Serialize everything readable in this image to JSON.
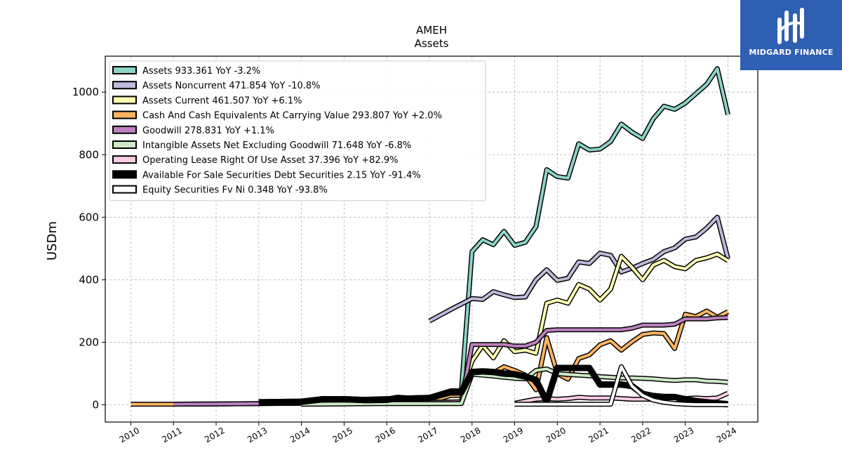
{
  "brand": {
    "name": "MIDGARD FINANCE",
    "color": "#2f5fb3"
  },
  "chart_data": {
    "type": "line",
    "title": "AMEH",
    "subtitle": "Assets",
    "ylabel": "USDm",
    "xlabel": "",
    "ylim": [
      -55,
      1115
    ],
    "xlim": [
      2009.4,
      2024.7
    ],
    "yticks": [
      0,
      200,
      400,
      600,
      800,
      1000
    ],
    "xticks": [
      "2010",
      "2011",
      "2012",
      "2013",
      "2014",
      "2015",
      "2016",
      "2017",
      "2018",
      "2019",
      "2020",
      "2021",
      "2022",
      "2023",
      "2024"
    ],
    "grid": true,
    "legend_position": "top-left",
    "series": [
      {
        "name": "Assets",
        "legend": "Assets  933.361 YoY -3.2%",
        "color": "#8dd3c7",
        "points": [
          [
            2013.0,
            8
          ],
          [
            2014.0,
            10
          ],
          [
            2014.5,
            14
          ],
          [
            2015.0,
            16
          ],
          [
            2015.5,
            18
          ],
          [
            2016.0,
            20
          ],
          [
            2016.5,
            22
          ],
          [
            2017.0,
            24
          ],
          [
            2017.5,
            45
          ],
          [
            2017.75,
            45
          ],
          [
            2018.0,
            490
          ],
          [
            2018.25,
            528
          ],
          [
            2018.5,
            512
          ],
          [
            2018.75,
            555
          ],
          [
            2019.0,
            510
          ],
          [
            2019.25,
            520
          ],
          [
            2019.5,
            570
          ],
          [
            2019.75,
            752
          ],
          [
            2020.0,
            730
          ],
          [
            2020.25,
            725
          ],
          [
            2020.5,
            835
          ],
          [
            2020.75,
            815
          ],
          [
            2021.0,
            818
          ],
          [
            2021.25,
            842
          ],
          [
            2021.5,
            898
          ],
          [
            2021.75,
            872
          ],
          [
            2022.0,
            852
          ],
          [
            2022.25,
            915
          ],
          [
            2022.5,
            955
          ],
          [
            2022.75,
            945
          ],
          [
            2023.0,
            965
          ],
          [
            2023.25,
            995
          ],
          [
            2023.5,
            1025
          ],
          [
            2023.75,
            1075
          ],
          [
            2024.0,
            928
          ]
        ]
      },
      {
        "name": "Assets Noncurrent",
        "legend": "Assets Noncurrent  471.854 YoY -10.8%",
        "color": "#bebada",
        "points": [
          [
            2017.0,
            268
          ],
          [
            2017.5,
            305
          ],
          [
            2018.0,
            340
          ],
          [
            2018.25,
            337
          ],
          [
            2018.5,
            362
          ],
          [
            2018.75,
            352
          ],
          [
            2019.0,
            343
          ],
          [
            2019.25,
            345
          ],
          [
            2019.5,
            400
          ],
          [
            2019.75,
            432
          ],
          [
            2020.0,
            398
          ],
          [
            2020.25,
            405
          ],
          [
            2020.5,
            457
          ],
          [
            2020.75,
            452
          ],
          [
            2021.0,
            485
          ],
          [
            2021.25,
            478
          ],
          [
            2021.5,
            425
          ],
          [
            2021.75,
            437
          ],
          [
            2022.0,
            452
          ],
          [
            2022.25,
            465
          ],
          [
            2022.5,
            490
          ],
          [
            2022.75,
            502
          ],
          [
            2023.0,
            530
          ],
          [
            2023.25,
            537
          ],
          [
            2023.5,
            565
          ],
          [
            2023.75,
            600
          ],
          [
            2024.0,
            467
          ]
        ]
      },
      {
        "name": "Assets Current",
        "legend": "Assets Current  461.507 YoY +6.1%",
        "color": "#ffffb3",
        "points": [
          [
            2017.75,
            40
          ],
          [
            2018.0,
            140
          ],
          [
            2018.25,
            190
          ],
          [
            2018.5,
            150
          ],
          [
            2018.75,
            205
          ],
          [
            2019.0,
            170
          ],
          [
            2019.25,
            175
          ],
          [
            2019.5,
            165
          ],
          [
            2019.75,
            325
          ],
          [
            2020.0,
            335
          ],
          [
            2020.25,
            325
          ],
          [
            2020.5,
            385
          ],
          [
            2020.75,
            370
          ],
          [
            2021.0,
            335
          ],
          [
            2021.25,
            370
          ],
          [
            2021.5,
            475
          ],
          [
            2021.75,
            440
          ],
          [
            2022.0,
            400
          ],
          [
            2022.25,
            447
          ],
          [
            2022.5,
            462
          ],
          [
            2022.75,
            442
          ],
          [
            2023.0,
            435
          ],
          [
            2023.25,
            462
          ],
          [
            2023.5,
            470
          ],
          [
            2023.75,
            482
          ],
          [
            2024.0,
            461
          ]
        ]
      },
      {
        "name": "Cash And Cash Equivalents At Carrying Value",
        "legend": "Cash And Cash Equivalents At Carrying Value  293.807 YoY +2.0%",
        "color": "#fdb462",
        "points": [
          [
            2010.0,
            2
          ],
          [
            2011.0,
            2
          ],
          [
            2012.0,
            3
          ],
          [
            2013.0,
            4
          ],
          [
            2014.0,
            5
          ],
          [
            2015.0,
            6
          ],
          [
            2016.0,
            8
          ],
          [
            2017.0,
            10
          ],
          [
            2017.5,
            30
          ],
          [
            2017.75,
            30
          ],
          [
            2018.0,
            100
          ],
          [
            2018.25,
            105
          ],
          [
            2018.5,
            102
          ],
          [
            2018.75,
            122
          ],
          [
            2019.0,
            110
          ],
          [
            2019.25,
            95
          ],
          [
            2019.5,
            48
          ],
          [
            2019.75,
            215
          ],
          [
            2020.0,
            100
          ],
          [
            2020.25,
            82
          ],
          [
            2020.5,
            148
          ],
          [
            2020.75,
            160
          ],
          [
            2021.0,
            192
          ],
          [
            2021.25,
            205
          ],
          [
            2021.5,
            175
          ],
          [
            2021.75,
            202
          ],
          [
            2022.0,
            225
          ],
          [
            2022.25,
            230
          ],
          [
            2022.5,
            228
          ],
          [
            2022.75,
            180
          ],
          [
            2023.0,
            290
          ],
          [
            2023.25,
            282
          ],
          [
            2023.5,
            300
          ],
          [
            2023.75,
            280
          ],
          [
            2024.0,
            298
          ]
        ]
      },
      {
        "name": "Goodwill",
        "legend": "Goodwill  278.831 YoY +1.1%",
        "color": "#bc80bd",
        "points": [
          [
            2011.0,
            2
          ],
          [
            2012.0,
            3
          ],
          [
            2013.0,
            4
          ],
          [
            2014.0,
            5
          ],
          [
            2015.0,
            6
          ],
          [
            2016.0,
            7
          ],
          [
            2017.0,
            8
          ],
          [
            2017.75,
            10
          ],
          [
            2018.0,
            193
          ],
          [
            2018.25,
            193
          ],
          [
            2018.5,
            193
          ],
          [
            2018.75,
            193
          ],
          [
            2019.0,
            188
          ],
          [
            2019.25,
            188
          ],
          [
            2019.5,
            200
          ],
          [
            2019.75,
            238
          ],
          [
            2020.0,
            240
          ],
          [
            2020.25,
            240
          ],
          [
            2020.5,
            240
          ],
          [
            2020.75,
            240
          ],
          [
            2021.0,
            240
          ],
          [
            2021.25,
            240
          ],
          [
            2021.5,
            240
          ],
          [
            2021.75,
            245
          ],
          [
            2022.0,
            255
          ],
          [
            2022.25,
            255
          ],
          [
            2022.5,
            255
          ],
          [
            2022.75,
            258
          ],
          [
            2023.0,
            275
          ],
          [
            2023.25,
            275
          ],
          [
            2023.5,
            275
          ],
          [
            2023.75,
            278
          ],
          [
            2024.0,
            279
          ]
        ]
      },
      {
        "name": "Intangible Assets Net Excluding Goodwill",
        "legend": "Intangible Assets Net Excluding Goodwill  71.648 YoY -6.8%",
        "color": "#ccebc5",
        "points": [
          [
            2014.0,
            2
          ],
          [
            2015.0,
            3
          ],
          [
            2016.0,
            4
          ],
          [
            2017.0,
            4
          ],
          [
            2017.75,
            4
          ],
          [
            2018.0,
            98
          ],
          [
            2018.25,
            95
          ],
          [
            2018.5,
            92
          ],
          [
            2018.75,
            88
          ],
          [
            2019.0,
            85
          ],
          [
            2019.25,
            83
          ],
          [
            2019.5,
            110
          ],
          [
            2019.75,
            115
          ],
          [
            2020.0,
            100
          ],
          [
            2020.25,
            97
          ],
          [
            2020.5,
            95
          ],
          [
            2020.75,
            93
          ],
          [
            2021.0,
            90
          ],
          [
            2021.25,
            88
          ],
          [
            2021.5,
            86
          ],
          [
            2021.75,
            86
          ],
          [
            2022.0,
            85
          ],
          [
            2022.25,
            83
          ],
          [
            2022.5,
            80
          ],
          [
            2022.75,
            78
          ],
          [
            2023.0,
            80
          ],
          [
            2023.25,
            80
          ],
          [
            2023.5,
            76
          ],
          [
            2023.75,
            75
          ],
          [
            2024.0,
            72
          ]
        ]
      },
      {
        "name": "Operating Lease Right Of Use Asset",
        "legend": "Operating Lease Right Of Use Asset  37.396 YoY +82.9%",
        "color": "#fccde5",
        "points": [
          [
            2019.0,
            5
          ],
          [
            2019.25,
            12
          ],
          [
            2019.5,
            18
          ],
          [
            2019.75,
            20
          ],
          [
            2020.0,
            18
          ],
          [
            2020.25,
            20
          ],
          [
            2020.5,
            24
          ],
          [
            2020.75,
            22
          ],
          [
            2021.0,
            22
          ],
          [
            2021.25,
            22
          ],
          [
            2021.5,
            20
          ],
          [
            2021.75,
            18
          ],
          [
            2022.0,
            18
          ],
          [
            2022.25,
            18
          ],
          [
            2022.5,
            16
          ],
          [
            2022.75,
            15
          ],
          [
            2023.0,
            20
          ],
          [
            2023.25,
            22
          ],
          [
            2023.5,
            20
          ],
          [
            2023.75,
            22
          ],
          [
            2024.0,
            37
          ]
        ]
      },
      {
        "name": "Available For Sale Securities Debt Securities",
        "legend": "Available For Sale Securities Debt Securities  2.15 YoY -91.4%",
        "color": "#000000",
        "points": [
          [
            2013.0,
            8
          ],
          [
            2014.0,
            10
          ],
          [
            2014.5,
            18
          ],
          [
            2015.0,
            18
          ],
          [
            2015.5,
            15
          ],
          [
            2016.0,
            16
          ],
          [
            2016.25,
            22
          ],
          [
            2016.5,
            20
          ],
          [
            2017.0,
            22
          ],
          [
            2017.5,
            40
          ],
          [
            2017.75,
            40
          ],
          [
            2018.0,
            105
          ],
          [
            2018.25,
            107
          ],
          [
            2018.5,
            105
          ],
          [
            2018.75,
            100
          ],
          [
            2019.0,
            98
          ],
          [
            2019.25,
            90
          ],
          [
            2019.5,
            80
          ],
          [
            2019.75,
            10
          ],
          [
            2020.0,
            118
          ],
          [
            2020.25,
            118
          ],
          [
            2020.5,
            118
          ],
          [
            2020.75,
            118
          ],
          [
            2021.0,
            65
          ],
          [
            2021.25,
            65
          ],
          [
            2021.5,
            65
          ],
          [
            2021.75,
            60
          ],
          [
            2022.0,
            35
          ],
          [
            2022.25,
            28
          ],
          [
            2022.5,
            25
          ],
          [
            2022.75,
            25
          ],
          [
            2023.0,
            18
          ],
          [
            2023.25,
            12
          ],
          [
            2023.5,
            8
          ],
          [
            2023.75,
            5
          ],
          [
            2024.0,
            2
          ]
        ]
      },
      {
        "name": "Equity Securities Fv Ni",
        "legend": "Equity Securities Fv Ni  0.348 YoY -93.8%",
        "color": "#ffffff",
        "points": [
          [
            2019.0,
            2
          ],
          [
            2019.5,
            2
          ],
          [
            2020.0,
            2
          ],
          [
            2020.5,
            2
          ],
          [
            2021.0,
            2
          ],
          [
            2021.25,
            2
          ],
          [
            2021.5,
            122
          ],
          [
            2021.75,
            60
          ],
          [
            2022.0,
            30
          ],
          [
            2022.25,
            15
          ],
          [
            2022.5,
            8
          ],
          [
            2022.75,
            4
          ],
          [
            2023.0,
            2
          ],
          [
            2023.25,
            1
          ],
          [
            2023.5,
            1
          ],
          [
            2023.75,
            1
          ],
          [
            2024.0,
            0.3
          ]
        ]
      }
    ]
  }
}
